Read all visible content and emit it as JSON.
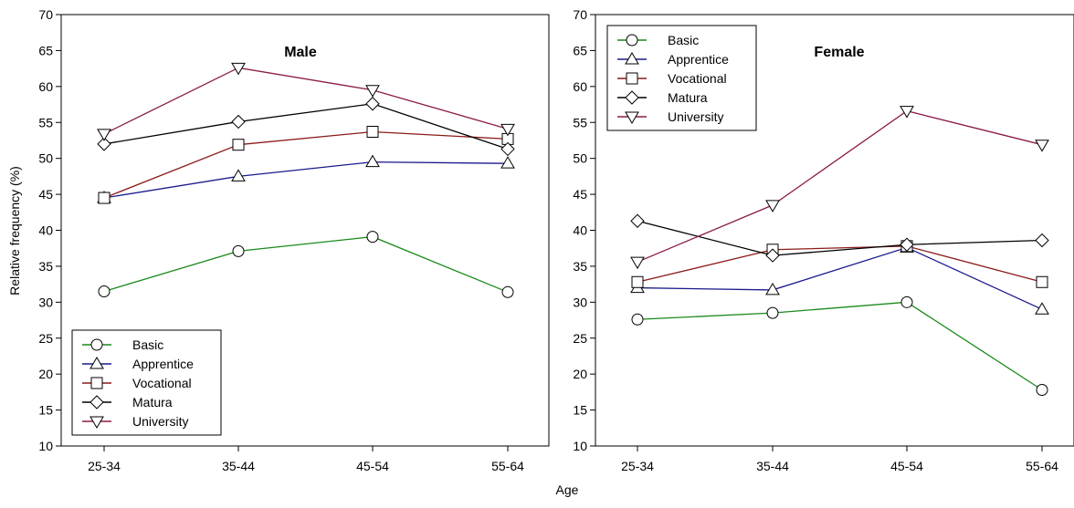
{
  "figure": {
    "ylabel": "Relative frequency (%)",
    "xlabel": "Age"
  },
  "chart_data": [
    {
      "type": "line",
      "title": "Male",
      "xlabel": "",
      "ylabel": "Relative frequency (%)",
      "categories": [
        "25-34",
        "35-44",
        "45-54",
        "55-64"
      ],
      "ylim": [
        10,
        70
      ],
      "yticks": [
        10,
        15,
        20,
        25,
        30,
        35,
        40,
        45,
        50,
        55,
        60,
        65,
        70
      ],
      "legend_position": "bottom-left",
      "series": [
        {
          "name": "Basic",
          "values": [
            31.5,
            37.1,
            39.1,
            31.4
          ],
          "color": "#1a8a1a",
          "marker": "circle"
        },
        {
          "name": "Apprentice",
          "values": [
            44.5,
            47.5,
            49.5,
            49.3
          ],
          "color": "#1a1a8c",
          "marker": "triangle-up"
        },
        {
          "name": "Vocational",
          "values": [
            44.5,
            51.9,
            53.7,
            52.7
          ],
          "color": "#8b1a1a",
          "marker": "square"
        },
        {
          "name": "Matura",
          "values": [
            52.0,
            55.1,
            57.6,
            51.3
          ],
          "color": "#000000",
          "marker": "diamond"
        },
        {
          "name": "University",
          "values": [
            53.4,
            62.6,
            59.5,
            54.1
          ],
          "color": "#8b1a4a",
          "marker": "triangle-down"
        }
      ]
    },
    {
      "type": "line",
      "title": "Female",
      "xlabel": "Age",
      "ylabel": "",
      "categories": [
        "25-34",
        "35-44",
        "45-54",
        "55-64"
      ],
      "ylim": [
        10,
        70
      ],
      "yticks": [
        10,
        15,
        20,
        25,
        30,
        35,
        40,
        45,
        50,
        55,
        60,
        65,
        70
      ],
      "legend_position": "top-left",
      "series": [
        {
          "name": "Basic",
          "values": [
            27.6,
            28.5,
            30.0,
            17.8
          ],
          "color": "#1a8a1a",
          "marker": "circle"
        },
        {
          "name": "Apprentice",
          "values": [
            32.0,
            31.7,
            37.6,
            29.0
          ],
          "color": "#1a1a8c",
          "marker": "triangle-up"
        },
        {
          "name": "Vocational",
          "values": [
            32.8,
            37.3,
            37.8,
            32.8
          ],
          "color": "#8b1a1a",
          "marker": "square"
        },
        {
          "name": "Matura",
          "values": [
            41.3,
            36.5,
            38.0,
            38.6
          ],
          "color": "#000000",
          "marker": "diamond"
        },
        {
          "name": "University",
          "values": [
            35.6,
            43.5,
            56.6,
            51.9
          ],
          "color": "#8b1a4a",
          "marker": "triangle-down"
        }
      ]
    }
  ]
}
